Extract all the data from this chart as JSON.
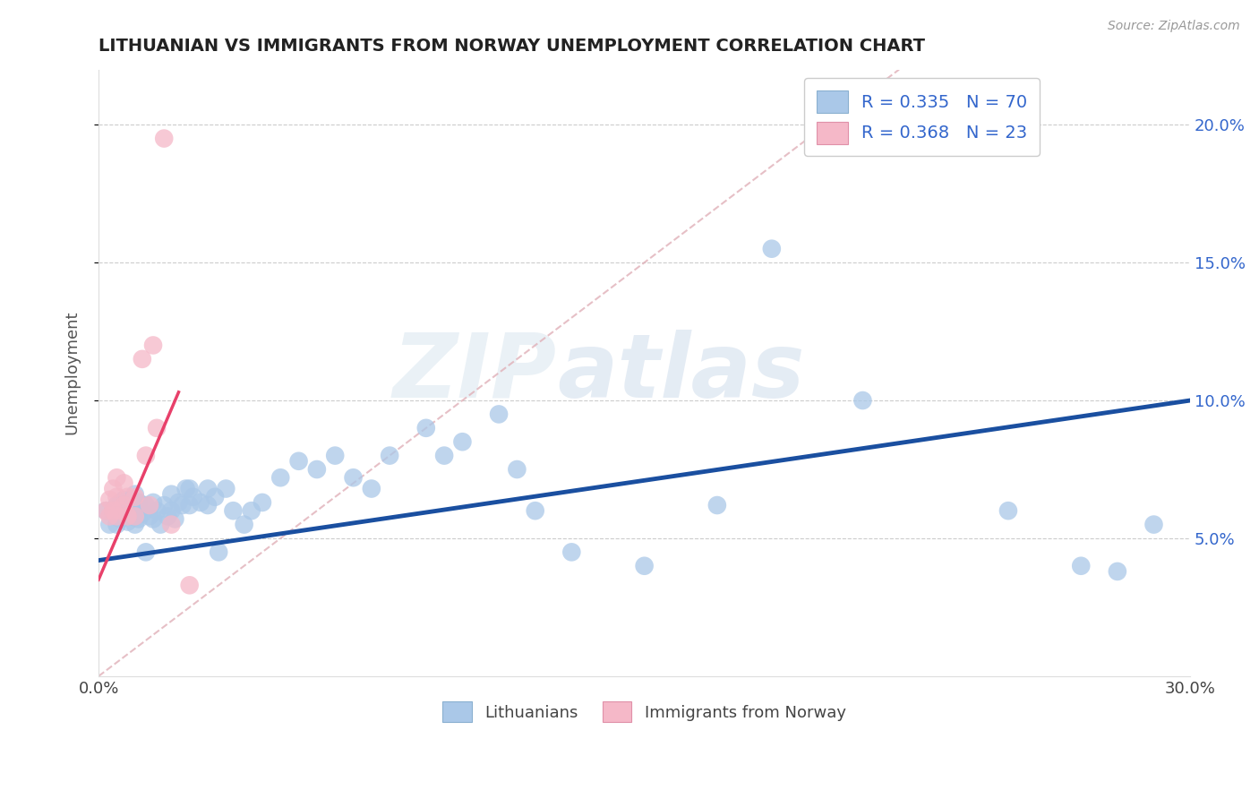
{
  "title": "LITHUANIAN VS IMMIGRANTS FROM NORWAY UNEMPLOYMENT CORRELATION CHART",
  "source": "Source: ZipAtlas.com",
  "ylabel": "Unemployment",
  "xmin": 0.0,
  "xmax": 0.3,
  "ymin": 0.0,
  "ymax": 0.22,
  "ytick_positions": [
    0.05,
    0.1,
    0.15,
    0.2
  ],
  "ytick_labels": [
    "5.0%",
    "10.0%",
    "15.0%",
    "20.0%"
  ],
  "blue_R": 0.335,
  "blue_N": 70,
  "pink_R": 0.368,
  "pink_N": 23,
  "blue_color": "#aac8e8",
  "pink_color": "#f5b8c8",
  "blue_line_color": "#1a4fa0",
  "pink_line_color": "#e8406a",
  "diagonal_color": "#e0b0b8",
  "watermark_zip": "ZIP",
  "watermark_atlas": "atlas",
  "title_color": "#222222",
  "legend_color": "#3366cc",
  "blue_scatter_x": [
    0.002,
    0.003,
    0.004,
    0.005,
    0.005,
    0.006,
    0.006,
    0.007,
    0.007,
    0.008,
    0.008,
    0.009,
    0.009,
    0.01,
    0.01,
    0.01,
    0.01,
    0.011,
    0.011,
    0.012,
    0.013,
    0.013,
    0.014,
    0.015,
    0.015,
    0.016,
    0.017,
    0.018,
    0.019,
    0.02,
    0.02,
    0.021,
    0.022,
    0.023,
    0.024,
    0.025,
    0.025,
    0.026,
    0.028,
    0.03,
    0.03,
    0.032,
    0.033,
    0.035,
    0.037,
    0.04,
    0.042,
    0.045,
    0.05,
    0.055,
    0.06,
    0.065,
    0.07,
    0.075,
    0.08,
    0.09,
    0.095,
    0.1,
    0.11,
    0.115,
    0.12,
    0.13,
    0.15,
    0.17,
    0.185,
    0.21,
    0.25,
    0.27,
    0.28,
    0.29
  ],
  "blue_scatter_y": [
    0.06,
    0.055,
    0.06,
    0.055,
    0.062,
    0.057,
    0.063,
    0.058,
    0.064,
    0.056,
    0.062,
    0.058,
    0.064,
    0.055,
    0.058,
    0.062,
    0.066,
    0.057,
    0.063,
    0.059,
    0.062,
    0.045,
    0.058,
    0.057,
    0.063,
    0.06,
    0.055,
    0.062,
    0.058,
    0.06,
    0.066,
    0.057,
    0.063,
    0.062,
    0.068,
    0.062,
    0.068,
    0.065,
    0.063,
    0.062,
    0.068,
    0.065,
    0.045,
    0.068,
    0.06,
    0.055,
    0.06,
    0.063,
    0.072,
    0.078,
    0.075,
    0.08,
    0.072,
    0.068,
    0.08,
    0.09,
    0.08,
    0.085,
    0.095,
    0.075,
    0.06,
    0.045,
    0.04,
    0.062,
    0.155,
    0.1,
    0.06,
    0.04,
    0.038,
    0.055
  ],
  "pink_scatter_x": [
    0.002,
    0.003,
    0.003,
    0.004,
    0.004,
    0.005,
    0.005,
    0.005,
    0.006,
    0.007,
    0.007,
    0.008,
    0.008,
    0.01,
    0.01,
    0.012,
    0.013,
    0.014,
    0.015,
    0.016,
    0.018,
    0.02,
    0.025
  ],
  "pink_scatter_y": [
    0.06,
    0.058,
    0.064,
    0.06,
    0.068,
    0.058,
    0.065,
    0.072,
    0.06,
    0.062,
    0.07,
    0.058,
    0.065,
    0.058,
    0.065,
    0.115,
    0.08,
    0.062,
    0.12,
    0.09,
    0.195,
    0.055,
    0.033
  ],
  "blue_line_x": [
    0.0,
    0.3
  ],
  "blue_line_y": [
    0.042,
    0.1
  ],
  "pink_line_x": [
    0.0,
    0.022
  ],
  "pink_line_y": [
    0.035,
    0.103
  ],
  "diag_line_x": [
    0.0,
    0.22
  ],
  "diag_line_y": [
    0.0,
    0.22
  ]
}
